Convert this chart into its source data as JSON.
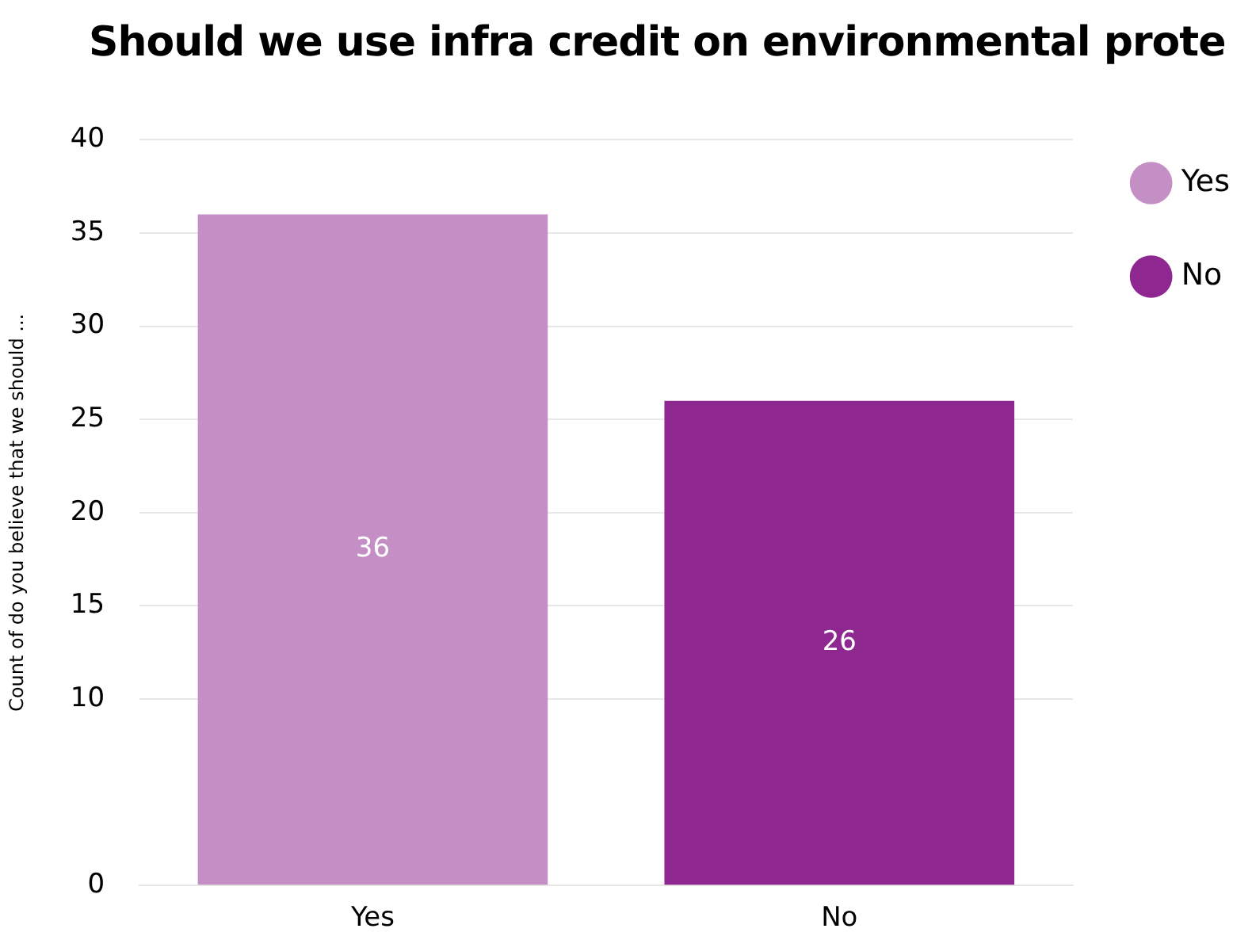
{
  "chart_data": {
    "type": "bar",
    "title": "Should we use infra credit on environmental prote",
    "ylabel": "Count of do you believe that we should ...",
    "categories": [
      "Yes",
      "No"
    ],
    "series": [
      {
        "name": "Yes",
        "color": "#c48fc4",
        "values": [
          36,
          null
        ]
      },
      {
        "name": "No",
        "color": "#8e278f",
        "values": [
          null,
          26
        ]
      }
    ],
    "ylim": [
      0,
      40
    ],
    "yticks": [
      0,
      10,
      15,
      20,
      25,
      30,
      35,
      40
    ],
    "grid": "y",
    "legend": "right",
    "data_labels": true
  }
}
